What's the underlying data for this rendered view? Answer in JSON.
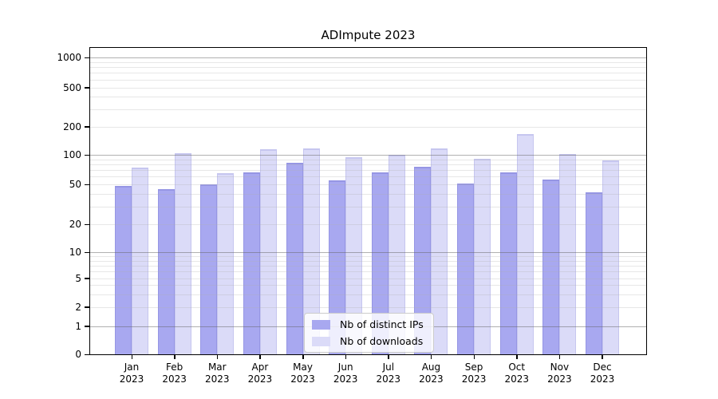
{
  "chart_data": {
    "type": "bar",
    "title": "ADImpute 2023",
    "categories": [
      "Jan",
      "Feb",
      "Mar",
      "Apr",
      "May",
      "Jun",
      "Jul",
      "Aug",
      "Sep",
      "Oct",
      "Nov",
      "Dec"
    ],
    "category_year_suffix": "2023",
    "series": [
      {
        "name": "Nb of distinct IPs",
        "key": "ips",
        "values": [
          48,
          45,
          50,
          66,
          83,
          55,
          66,
          75,
          51,
          66,
          56,
          42
        ]
      },
      {
        "name": "Nb of downloads",
        "key": "downloads",
        "values": [
          74,
          105,
          65,
          115,
          117,
          94,
          101,
          117,
          91,
          165,
          103,
          88
        ]
      }
    ],
    "yscale": "symlog",
    "ytick_values": [
      0,
      1,
      2,
      5,
      10,
      20,
      50,
      100,
      200,
      500,
      1000
    ],
    "ytick_labels": [
      "0",
      "1",
      "2",
      "5",
      "10",
      "20",
      "50",
      "100",
      "200",
      "500",
      "1000"
    ],
    "minor_grid_values": [
      2,
      3,
      4,
      5,
      6,
      7,
      8,
      9,
      20,
      30,
      40,
      50,
      60,
      70,
      80,
      90,
      200,
      300,
      400,
      500,
      600,
      700,
      800,
      900
    ],
    "major_grid_values": [
      1,
      10,
      100,
      1000
    ],
    "ylim": [
      0,
      1270
    ],
    "grid": "on (drawn above bars)",
    "legend_position": "lower center"
  },
  "colors": {
    "ips": "#a8a8f0",
    "ips_edge": "#9696e4",
    "downloads": "#dbdbf8",
    "downloads_edge": "#c6c6ef",
    "axis": "#000000",
    "background": "#ffffff"
  }
}
